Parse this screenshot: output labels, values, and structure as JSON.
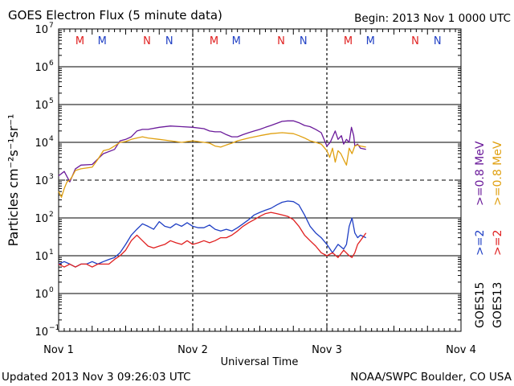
{
  "header": {
    "title": "GOES Electron Flux (5 minute data)",
    "begin": "Begin: 2013 Nov 1 0000 UTC"
  },
  "footer": {
    "updated": "Updated 2013 Nov  3 09:26:03 UTC",
    "source": "NOAA/SWPC Boulder, CO USA"
  },
  "legend": {
    "goes15": "GOES15",
    "goes13": "GOES13",
    "rows": [
      {
        "label": ">=2",
        "color": "#1f3fc4"
      },
      {
        "label": ">=0.8 MeV",
        "color": "#6a1a9a"
      },
      {
        "label": ">=2",
        "color": "#e02020"
      },
      {
        "label": ">=0.8 MeV",
        "color": "#e0a010"
      }
    ]
  },
  "chart_data": {
    "type": "line",
    "title": "GOES Electron Flux (5 minute data)",
    "xlabel": "Universal Time",
    "ylabel": "Particles cm⁻²s⁻¹sr⁻¹",
    "x_unit": "hours since 2013 Nov 1 0000 UTC",
    "xlim": [
      0,
      72
    ],
    "y_scale": "log",
    "ylim_exponent": [
      -1,
      7
    ],
    "x_tick_labels": [
      {
        "x": 0,
        "label": "Nov 1"
      },
      {
        "x": 24,
        "label": "Nov 2"
      },
      {
        "x": 48,
        "label": "Nov 3"
      },
      {
        "x": 72,
        "label": "Nov 4"
      }
    ],
    "y_tick_labels": [
      {
        "exp": 7,
        "label": "10",
        "sup": "7"
      },
      {
        "exp": 6,
        "label": "10",
        "sup": "6"
      },
      {
        "exp": 5,
        "label": "10",
        "sup": "5"
      },
      {
        "exp": 4,
        "label": "10",
        "sup": "4"
      },
      {
        "exp": 3,
        "label": "10",
        "sup": "3"
      },
      {
        "exp": 2,
        "label": "10",
        "sup": "2"
      },
      {
        "exp": 1,
        "label": "10",
        "sup": "1"
      },
      {
        "exp": 0,
        "label": "10",
        "sup": "0"
      },
      {
        "exp": -1,
        "label": "10",
        "sup": "−1"
      }
    ],
    "solid_gridlines_exp": [
      6,
      5,
      4,
      2,
      1,
      0
    ],
    "dashed_gridlines_exp": [
      3
    ],
    "day_separators_x": [
      24,
      48
    ],
    "markers": [
      {
        "x": 3.8,
        "label": "M",
        "color": "#e02020"
      },
      {
        "x": 7.8,
        "label": "M",
        "color": "#1f3fc4"
      },
      {
        "x": 15.8,
        "label": "N",
        "color": "#e02020"
      },
      {
        "x": 19.8,
        "label": "N",
        "color": "#1f3fc4"
      },
      {
        "x": 27.8,
        "label": "M",
        "color": "#e02020"
      },
      {
        "x": 31.8,
        "label": "M",
        "color": "#1f3fc4"
      },
      {
        "x": 39.8,
        "label": "N",
        "color": "#e02020"
      },
      {
        "x": 43.8,
        "label": "N",
        "color": "#1f3fc4"
      },
      {
        "x": 51.8,
        "label": "M",
        "color": "#e02020"
      },
      {
        "x": 55.8,
        "label": "M",
        "color": "#1f3fc4"
      },
      {
        "x": 63.8,
        "label": "N",
        "color": "#e02020"
      },
      {
        "x": 67.8,
        "label": "N",
        "color": "#1f3fc4"
      }
    ],
    "series": [
      {
        "name": "GOES15 >=0.8 MeV",
        "color": "#6a1a9a",
        "x": [
          0,
          1,
          2,
          3,
          4,
          6,
          8,
          10,
          11,
          12,
          13,
          14,
          15,
          16,
          18,
          20,
          22,
          24,
          26,
          27,
          28,
          29,
          30,
          31,
          32,
          33,
          34,
          35,
          36,
          37,
          38,
          40,
          41,
          42,
          43,
          44,
          45,
          46,
          47,
          48,
          48.6,
          49.5,
          50,
          50.6,
          51,
          51.5,
          52,
          52.4,
          52.8,
          53,
          53.5,
          54,
          55
        ],
        "y": [
          1300,
          1700,
          900,
          2000,
          2500,
          2600,
          5000,
          6500,
          11000,
          12000,
          14000,
          20000,
          22000,
          22000,
          25000,
          27000,
          26000,
          25000,
          23000,
          20000,
          19000,
          19000,
          16000,
          14000,
          14000,
          16000,
          18000,
          20000,
          22000,
          25000,
          28000,
          36000,
          37000,
          37000,
          33000,
          28000,
          26000,
          22000,
          18000,
          8000,
          10000,
          20000,
          12000,
          15000,
          9000,
          12000,
          10000,
          25000,
          15000,
          8000,
          9000,
          7000,
          6500
        ]
      },
      {
        "name": "GOES13 >=0.8 MeV",
        "color": "#e0a010",
        "x": [
          0,
          0.5,
          1,
          1.5,
          2,
          2.5,
          3,
          4,
          6,
          7,
          8,
          9,
          10,
          11,
          12,
          13,
          14,
          15,
          16,
          18,
          20,
          22,
          24,
          26,
          27,
          28,
          29,
          30,
          31,
          32,
          34,
          36,
          38,
          40,
          42,
          43,
          44,
          45,
          46,
          47,
          48,
          48.5,
          49,
          49.5,
          50,
          50.5,
          51,
          51.5,
          52,
          52.5,
          53,
          53.5,
          54,
          55
        ],
        "y": [
          500,
          350,
          600,
          900,
          1000,
          1300,
          1800,
          2000,
          2200,
          3500,
          6000,
          6500,
          8000,
          10000,
          10500,
          12000,
          13000,
          14000,
          13000,
          12000,
          11000,
          10000,
          11000,
          10000,
          9500,
          8000,
          7500,
          8500,
          9500,
          11000,
          13000,
          15000,
          17000,
          18000,
          17000,
          15000,
          13000,
          11000,
          10000,
          9000,
          6000,
          4000,
          7000,
          3000,
          6000,
          5000,
          3500,
          2500,
          7000,
          5000,
          8000,
          8500,
          8000,
          7500
        ]
      },
      {
        "name": "GOES15 >=2 MeV",
        "color": "#1f3fc4",
        "x": [
          0,
          1,
          2,
          3,
          4,
          5,
          6,
          7,
          8,
          9,
          10,
          11,
          12,
          13,
          14,
          15,
          16,
          17,
          18,
          19,
          20,
          21,
          22,
          23,
          24,
          25,
          26,
          27,
          28,
          29,
          30,
          31,
          32,
          33,
          34,
          35,
          36,
          37,
          38,
          39,
          40,
          41,
          42,
          43,
          44,
          45,
          46,
          47,
          48,
          49,
          50,
          51,
          51.5,
          52,
          52.5,
          53,
          53.5,
          54,
          55
        ],
        "y": [
          6,
          7,
          6,
          5,
          6,
          6,
          7,
          6,
          7,
          8,
          9,
          12,
          20,
          35,
          50,
          70,
          60,
          50,
          80,
          60,
          55,
          70,
          60,
          75,
          60,
          55,
          55,
          65,
          50,
          45,
          50,
          45,
          55,
          70,
          90,
          120,
          140,
          160,
          180,
          220,
          260,
          280,
          270,
          220,
          120,
          60,
          40,
          30,
          20,
          12,
          20,
          15,
          20,
          60,
          100,
          40,
          30,
          35,
          30
        ]
      },
      {
        "name": "GOES13 >=2 MeV",
        "color": "#e02020",
        "x": [
          0,
          1,
          2,
          3,
          4,
          5,
          6,
          7,
          8,
          9,
          10,
          11,
          12,
          13,
          14,
          15,
          16,
          17,
          18,
          19,
          20,
          21,
          22,
          23,
          24,
          25,
          26,
          27,
          28,
          29,
          30,
          31,
          32,
          33,
          34,
          35,
          36,
          37,
          38,
          39,
          40,
          41,
          42,
          43,
          44,
          45,
          46,
          47,
          48,
          49,
          50,
          51,
          52,
          52.5,
          53,
          53.5,
          54,
          55
        ],
        "y": [
          6,
          5,
          6,
          5,
          6,
          6,
          5,
          6,
          6,
          6,
          8,
          10,
          14,
          25,
          35,
          25,
          18,
          16,
          18,
          20,
          25,
          22,
          20,
          25,
          20,
          22,
          25,
          22,
          25,
          30,
          30,
          35,
          45,
          60,
          75,
          90,
          110,
          130,
          140,
          130,
          120,
          110,
          90,
          60,
          35,
          25,
          18,
          12,
          10,
          12,
          9,
          14,
          10,
          9,
          12,
          20,
          25,
          40
        ]
      }
    ]
  }
}
